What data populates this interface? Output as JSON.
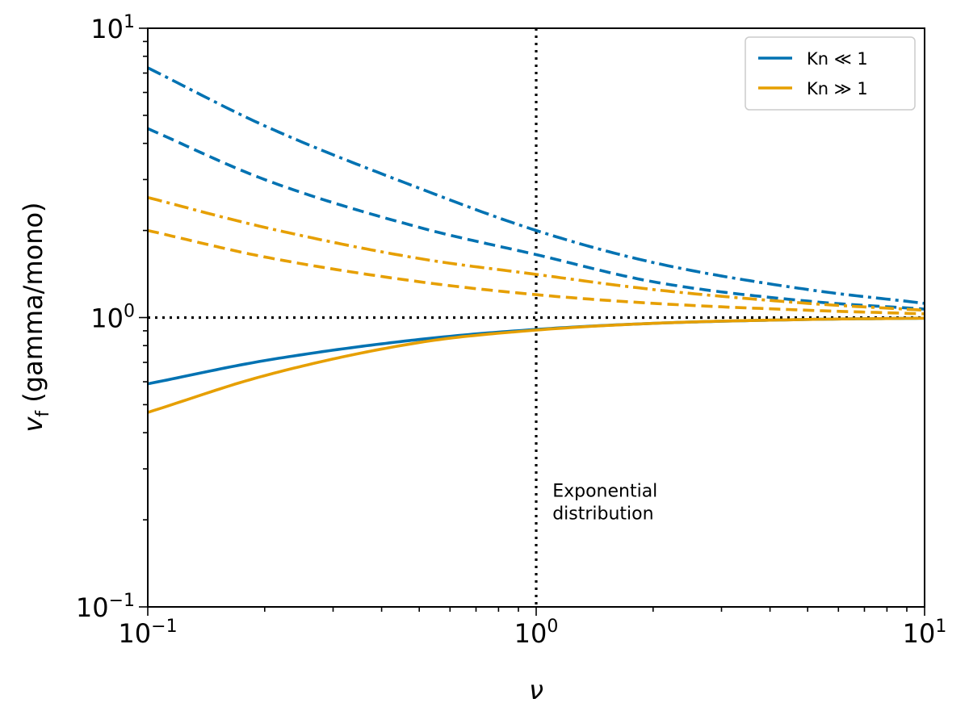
{
  "chart_data": {
    "type": "line",
    "xscale": "log",
    "yscale": "log",
    "xlim": [
      0.1,
      10
    ],
    "ylim": [
      0.1,
      10
    ],
    "xlabel": "ν",
    "ylabel": "(gamma/mono)",
    "ylabel_symbol": "v",
    "ylabel_subscript": "f",
    "x_ticks": [
      {
        "base": "10",
        "exp": "−1"
      },
      {
        "base": "10",
        "exp": "0"
      },
      {
        "base": "10",
        "exp": "1"
      }
    ],
    "y_ticks": [
      {
        "base": "10",
        "exp": "−1"
      },
      {
        "base": "10",
        "exp": "0"
      },
      {
        "base": "10",
        "exp": "1"
      }
    ],
    "legend": {
      "placement": "top-right",
      "entries": [
        {
          "label": "Kn ≪ 1",
          "color": "#0072B2"
        },
        {
          "label": "Kn ≫ 1",
          "color": "#E69F00"
        }
      ]
    },
    "series": [
      {
        "name": "Kn ≪ 1 (solid)",
        "color": "#0072B2",
        "style": "solid",
        "x": [
          0.1,
          0.2,
          0.5,
          1,
          2,
          5,
          10
        ],
        "y": [
          0.59,
          0.71,
          0.84,
          0.91,
          0.955,
          0.985,
          0.995
        ]
      },
      {
        "name": "Kn ≪ 1 (dashed)",
        "color": "#0072B2",
        "style": "dashed",
        "x": [
          0.1,
          0.2,
          0.5,
          1,
          2,
          5,
          10
        ],
        "y": [
          4.5,
          3.0,
          2.05,
          1.65,
          1.33,
          1.14,
          1.07
        ]
      },
      {
        "name": "Kn ≪ 1 (dash-dot)",
        "color": "#0072B2",
        "style": "dashdot",
        "x": [
          0.1,
          0.2,
          0.5,
          1,
          2,
          5,
          10
        ],
        "y": [
          7.3,
          4.6,
          2.8,
          2.0,
          1.55,
          1.25,
          1.12
        ]
      },
      {
        "name": "Kn ≫ 1 (solid)",
        "color": "#E69F00",
        "style": "solid",
        "x": [
          0.1,
          0.2,
          0.5,
          1,
          2,
          5,
          10
        ],
        "y": [
          0.47,
          0.63,
          0.82,
          0.905,
          0.955,
          0.985,
          0.995
        ]
      },
      {
        "name": "Kn ≫ 1 (dashed)",
        "color": "#E69F00",
        "style": "dashed",
        "x": [
          0.1,
          0.2,
          0.5,
          1,
          2,
          5,
          10
        ],
        "y": [
          2.0,
          1.62,
          1.33,
          1.2,
          1.12,
          1.06,
          1.03
        ]
      },
      {
        "name": "Kn ≫ 1 (dash-dot)",
        "color": "#E69F00",
        "style": "dashdot",
        "x": [
          0.1,
          0.2,
          0.5,
          1,
          2,
          5,
          10
        ],
        "y": [
          2.6,
          2.05,
          1.6,
          1.41,
          1.25,
          1.12,
          1.06
        ]
      }
    ],
    "reference_lines": [
      {
        "orientation": "horizontal",
        "value": 1,
        "style": "dotted",
        "color": "#000000"
      },
      {
        "orientation": "vertical",
        "value": 1,
        "style": "dotted",
        "color": "#000000"
      }
    ],
    "annotations": [
      {
        "text_lines": [
          "Exponential",
          "distribution"
        ],
        "x": 1.05,
        "y": 0.24
      }
    ]
  }
}
